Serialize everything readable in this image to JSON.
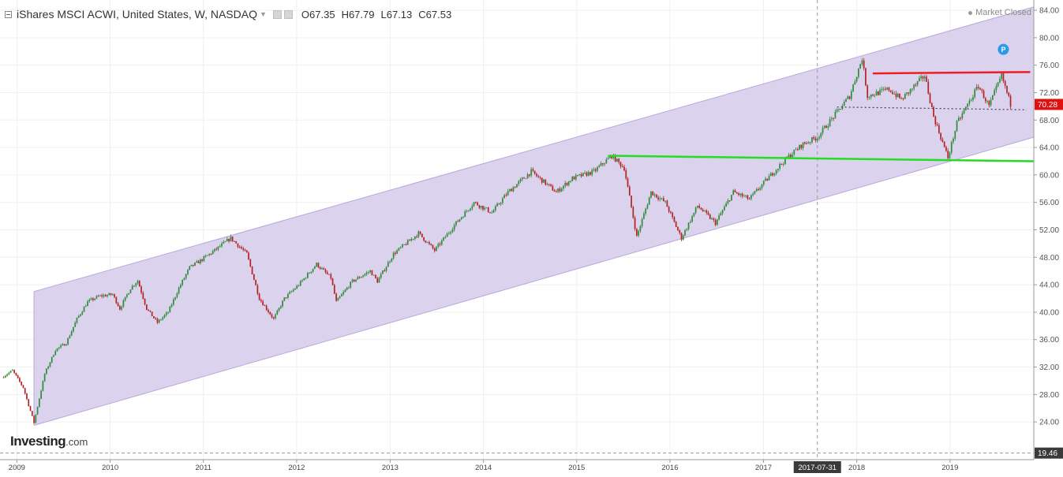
{
  "header": {
    "title": "iShares MSCI ACWI, United States, W, NASDAQ",
    "open": "O67.35",
    "high": "H67.79",
    "low": "L67.13",
    "close": "C67.53",
    "status": "Market Closed"
  },
  "logo": {
    "brand": "Investing",
    "suffix": ".com"
  },
  "colors": {
    "up": "#2e8b3a",
    "down": "#b22222",
    "channel_fill": "#d9d1ec",
    "channel_line": "#b8a8dc",
    "resistance": "#ee1c25",
    "support": "#22dd22",
    "price_label": "#e01010",
    "marker": "#2b9ae8"
  },
  "chart_data": {
    "type": "line",
    "series": [
      {
        "values": [
          [
            "2008-11-03",
            30.5
          ],
          [
            "2008-12-15",
            31.5
          ],
          [
            "2009-01-26",
            29.0
          ],
          [
            "2009-03-09",
            23.9
          ],
          [
            "2009-04-20",
            31.0
          ],
          [
            "2009-06-01",
            34.5
          ],
          [
            "2009-07-13",
            35.5
          ],
          [
            "2009-08-24",
            39.0
          ],
          [
            "2009-10-05",
            41.5
          ],
          [
            "2009-11-16",
            42.3
          ],
          [
            "2010-01-11",
            42.6
          ],
          [
            "2010-02-08",
            40.5
          ],
          [
            "2010-03-22",
            43.5
          ],
          [
            "2010-04-19",
            44.6
          ],
          [
            "2010-05-24",
            40.5
          ],
          [
            "2010-07-05",
            38.5
          ],
          [
            "2010-08-16",
            40.0
          ],
          [
            "2010-09-27",
            43.5
          ],
          [
            "2010-11-08",
            46.5
          ],
          [
            "2010-12-20",
            47.5
          ],
          [
            "2011-02-14",
            49.0
          ],
          [
            "2011-04-18",
            50.8
          ],
          [
            "2011-06-20",
            48.5
          ],
          [
            "2011-08-08",
            42.0
          ],
          [
            "2011-10-03",
            39.0
          ],
          [
            "2011-11-14",
            42.0
          ],
          [
            "2012-01-09",
            44.0
          ],
          [
            "2012-03-19",
            47.0
          ],
          [
            "2012-05-14",
            45.0
          ],
          [
            "2012-06-04",
            41.5
          ],
          [
            "2012-08-06",
            44.5
          ],
          [
            "2012-10-15",
            46.0
          ],
          [
            "2012-11-12",
            44.5
          ],
          [
            "2013-01-14",
            48.5
          ],
          [
            "2013-04-22",
            51.5
          ],
          [
            "2013-06-24",
            49.0
          ],
          [
            "2013-09-16",
            53.0
          ],
          [
            "2013-11-25",
            56.0
          ],
          [
            "2014-02-03",
            54.5
          ],
          [
            "2014-04-07",
            57.5
          ],
          [
            "2014-07-07",
            60.5
          ],
          [
            "2014-10-13",
            57.5
          ],
          [
            "2014-12-15",
            59.5
          ],
          [
            "2015-03-09",
            60.5
          ],
          [
            "2015-05-18",
            62.8
          ],
          [
            "2015-07-06",
            61.0
          ],
          [
            "2015-08-24",
            51.0
          ],
          [
            "2015-10-19",
            57.5
          ],
          [
            "2015-12-14",
            56.0
          ],
          [
            "2016-01-25",
            52.5
          ],
          [
            "2016-02-15",
            50.8
          ],
          [
            "2016-04-18",
            55.5
          ],
          [
            "2016-06-27",
            53.0
          ],
          [
            "2016-09-05",
            57.5
          ],
          [
            "2016-11-07",
            56.5
          ],
          [
            "2017-01-30",
            60.0
          ],
          [
            "2017-04-03",
            62.5
          ],
          [
            "2017-06-05",
            64.5
          ],
          [
            "2017-07-31",
            65.5
          ],
          [
            "2017-10-02",
            68.5
          ],
          [
            "2017-12-04",
            71.5
          ],
          [
            "2018-01-22",
            77.0
          ],
          [
            "2018-02-12",
            71.5
          ],
          [
            "2018-05-07",
            72.5
          ],
          [
            "2018-06-25",
            71.0
          ],
          [
            "2018-09-24",
            74.5
          ],
          [
            "2018-10-29",
            68.5
          ],
          [
            "2018-12-24",
            62.5
          ],
          [
            "2019-01-28",
            67.5
          ],
          [
            "2019-04-22",
            73.0
          ],
          [
            "2019-06-03",
            70.0
          ],
          [
            "2019-07-22",
            74.5
          ],
          [
            "2019-08-26",
            70.3
          ]
        ]
      }
    ],
    "y_axis": {
      "ticks": [
        "84.00",
        "80.00",
        "76.00",
        "72.00",
        "68.00",
        "64.00",
        "60.00",
        "56.00",
        "52.00",
        "48.00",
        "44.00",
        "40.00",
        "36.00",
        "32.00",
        "28.00",
        "24.00"
      ],
      "range": [
        18.5,
        85.5
      ],
      "position": "right"
    },
    "x_axis": {
      "ticks": [
        "2009",
        "2010",
        "2011",
        "2012",
        "2013",
        "2014",
        "2015",
        "2016",
        "2017",
        "2018",
        "2019"
      ],
      "range": [
        "2008-10-27",
        "2019-11-25"
      ]
    },
    "current_price_label": "70.28",
    "baseline_label": "19.46",
    "crosshair_label": "2017-07-31",
    "channel": {
      "upper": [
        [
          "2009-03-09",
          43.0
        ],
        [
          "2019-11-25",
          84.5
        ]
      ],
      "lower": [
        [
          "2009-03-09",
          23.5
        ],
        [
          "2019-11-25",
          65.5
        ]
      ]
    },
    "support_line": [
      [
        "2015-05-04",
        62.8
      ],
      [
        "2019-11-25",
        62.0
      ]
    ],
    "resistance_line": [
      [
        "2018-03-05",
        74.8
      ],
      [
        "2019-11-11",
        75.0
      ]
    ],
    "dotted_level": [
      [
        "2017-10-16",
        69.9
      ],
      [
        "2019-10-28",
        69.5
      ]
    ],
    "grid": true,
    "marker_label": "P"
  }
}
